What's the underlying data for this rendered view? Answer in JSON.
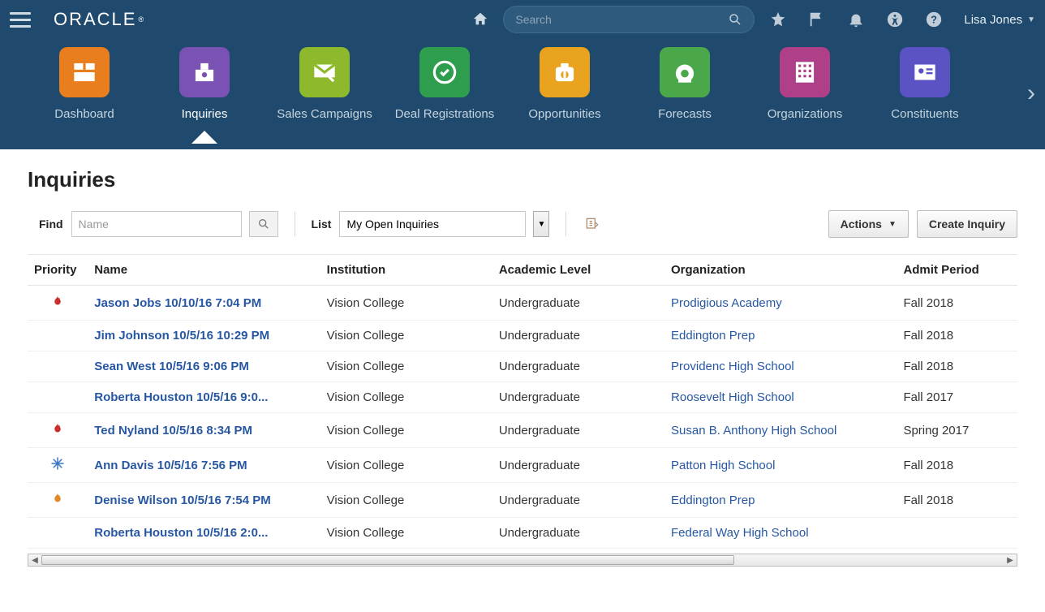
{
  "brand": "ORACLE",
  "user_name": "Lisa Jones",
  "search_placeholder": "Search",
  "nav": [
    {
      "label": "Dashboard",
      "color": "#e97e1f",
      "icon": "dashboard"
    },
    {
      "label": "Inquiries",
      "color": "#7a52b3",
      "icon": "inquiry",
      "active": true
    },
    {
      "label": "Sales Campaigns",
      "color": "#8fb92d",
      "icon": "campaign"
    },
    {
      "label": "Deal Registrations",
      "color": "#2e9e4e",
      "icon": "deal"
    },
    {
      "label": "Opportunities",
      "color": "#e9a31f",
      "icon": "opportunity"
    },
    {
      "label": "Forecasts",
      "color": "#4aa84a",
      "icon": "forecast"
    },
    {
      "label": "Organizations",
      "color": "#b03f8a",
      "icon": "org"
    },
    {
      "label": "Constituents",
      "color": "#5b52c4",
      "icon": "constituent"
    }
  ],
  "page_title": "Inquiries",
  "toolbar": {
    "find_label": "Find",
    "find_placeholder": "Name",
    "list_label": "List",
    "list_selected": "My Open Inquiries",
    "actions_label": "Actions",
    "create_label": "Create Inquiry"
  },
  "columns": [
    "Priority",
    "Name",
    "Institution",
    "Academic Level",
    "Organization",
    "Admit Period"
  ],
  "rows": [
    {
      "priority": "hot",
      "name": "Jason Jobs 10/10/16 7:04 PM",
      "institution": "Vision College",
      "level": "Undergraduate",
      "org": "Prodigious Academy",
      "admit": "Fall 2018"
    },
    {
      "priority": "",
      "name": "Jim Johnson 10/5/16 10:29 PM",
      "institution": "Vision College",
      "level": "Undergraduate",
      "org": "Eddington Prep",
      "admit": "Fall 2018"
    },
    {
      "priority": "",
      "name": "Sean West 10/5/16 9:06 PM",
      "institution": "Vision College",
      "level": "Undergraduate",
      "org": "Providenc High School",
      "admit": "Fall 2018"
    },
    {
      "priority": "",
      "name": "Roberta Houston 10/5/16 9:0...",
      "institution": "Vision College",
      "level": "Undergraduate",
      "org": "Roosevelt High School",
      "admit": "Fall 2017"
    },
    {
      "priority": "hot",
      "name": "Ted Nyland 10/5/16 8:34 PM",
      "institution": "Vision College",
      "level": "Undergraduate",
      "org": "Susan B. Anthony High School",
      "admit": "Spring 2017"
    },
    {
      "priority": "cold",
      "name": "Ann Davis 10/5/16 7:56 PM",
      "institution": "Vision College",
      "level": "Undergraduate",
      "org": "Patton High School",
      "admit": "Fall 2018"
    },
    {
      "priority": "warm",
      "name": "Denise Wilson 10/5/16 7:54 PM",
      "institution": "Vision College",
      "level": "Undergraduate",
      "org": "Eddington Prep",
      "admit": "Fall 2018"
    },
    {
      "priority": "",
      "name": "Roberta Houston 10/5/16 2:0...",
      "institution": "Vision College",
      "level": "Undergraduate",
      "org": "Federal Way High School",
      "admit": ""
    }
  ],
  "theme": {
    "header_bg": "#1f4a6e",
    "link_color": "#2757a3"
  },
  "priority_icons": {
    "hot": {
      "color": "#c9302c",
      "glyph": "flame"
    },
    "warm": {
      "color": "#e08a2c",
      "glyph": "flame"
    },
    "cold": {
      "color": "#3a77c2",
      "glyph": "snow"
    }
  }
}
